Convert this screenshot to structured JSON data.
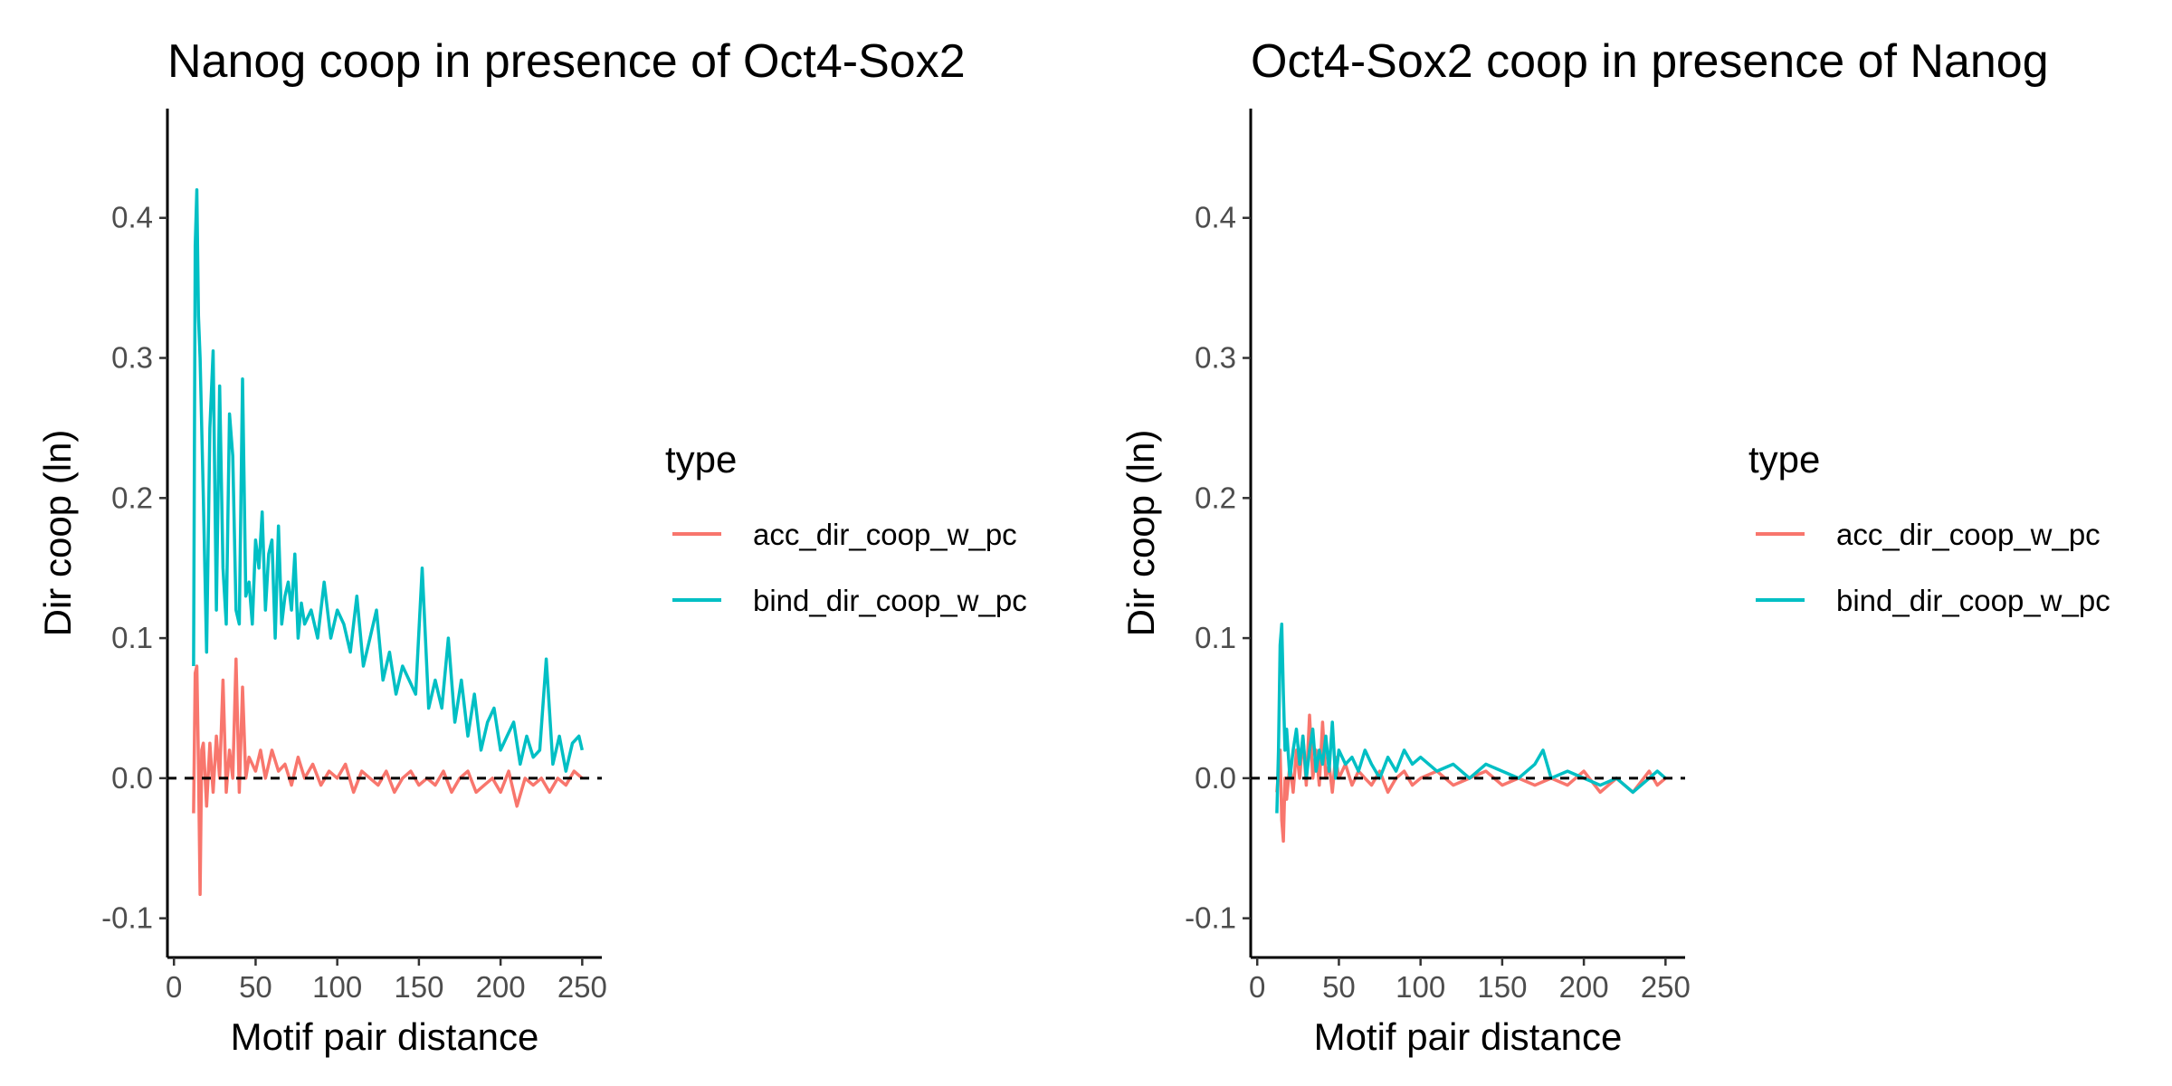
{
  "chart_data": [
    {
      "type": "line",
      "title": "Nanog coop in presence of Oct4-Sox2",
      "xlabel": "Motif pair distance",
      "ylabel": "Dir coop (ln)",
      "xlim": [
        -4,
        262
      ],
      "ylim": [
        -0.128,
        0.478
      ],
      "xticks": [
        0,
        50,
        100,
        150,
        200,
        250
      ],
      "yticks": [
        -0.1,
        0.0,
        0.1,
        0.2,
        0.3,
        0.4
      ],
      "ytick_labels": [
        "-0.1",
        "0.0",
        "0.1",
        "0.2",
        "0.3",
        "0.4"
      ],
      "reference_line": {
        "y": 0,
        "style": "dashed",
        "color": "#000000"
      },
      "grid": false,
      "legend": {
        "title": "type",
        "position": "right"
      },
      "series": [
        {
          "name": "acc_dir_coop_w_pc",
          "color": "#F8766D",
          "x": [
            12,
            13,
            14,
            15,
            16,
            17,
            18,
            20,
            22,
            24,
            26,
            28,
            30,
            32,
            34,
            36,
            38,
            40,
            42,
            44,
            46,
            48,
            50,
            53,
            56,
            60,
            64,
            68,
            72,
            76,
            80,
            85,
            90,
            95,
            100,
            105,
            110,
            115,
            120,
            125,
            130,
            135,
            140,
            145,
            150,
            155,
            160,
            165,
            170,
            175,
            180,
            185,
            190,
            195,
            200,
            205,
            210,
            215,
            220,
            225,
            230,
            235,
            240,
            245,
            250
          ],
          "y": [
            -0.025,
            0.075,
            0.08,
            0.01,
            -0.083,
            0.02,
            0.025,
            -0.02,
            0.025,
            -0.01,
            0.03,
            0.0,
            0.07,
            -0.01,
            0.02,
            0.0,
            0.085,
            -0.01,
            0.065,
            0.0,
            0.015,
            0.01,
            0.005,
            0.02,
            0.0,
            0.02,
            0.005,
            0.01,
            -0.005,
            0.015,
            0.0,
            0.01,
            -0.005,
            0.005,
            0.0,
            0.01,
            -0.01,
            0.005,
            0.0,
            -0.005,
            0.005,
            -0.01,
            0.0,
            0.005,
            -0.005,
            0.0,
            -0.005,
            0.005,
            -0.01,
            0.0,
            0.005,
            -0.01,
            -0.005,
            0.0,
            -0.01,
            0.005,
            -0.02,
            0.0,
            -0.005,
            0.0,
            -0.01,
            0.0,
            -0.005,
            0.005,
            0.0
          ]
        },
        {
          "name": "bind_dir_coop_w_pc",
          "color": "#00BFC4",
          "x": [
            12,
            13,
            14,
            15,
            16,
            17,
            18,
            20,
            22,
            24,
            26,
            28,
            30,
            32,
            34,
            36,
            38,
            40,
            42,
            44,
            46,
            48,
            50,
            52,
            54,
            56,
            58,
            60,
            62,
            64,
            66,
            68,
            70,
            72,
            74,
            76,
            78,
            80,
            84,
            88,
            92,
            96,
            100,
            104,
            108,
            112,
            116,
            120,
            124,
            128,
            132,
            136,
            140,
            144,
            148,
            152,
            156,
            160,
            164,
            168,
            172,
            176,
            180,
            184,
            188,
            192,
            196,
            200,
            204,
            208,
            212,
            216,
            220,
            224,
            228,
            232,
            236,
            240,
            244,
            248,
            250
          ],
          "y": [
            0.08,
            0.38,
            0.42,
            0.33,
            0.3,
            0.25,
            0.2,
            0.09,
            0.25,
            0.305,
            0.12,
            0.28,
            0.15,
            0.11,
            0.26,
            0.23,
            0.12,
            0.11,
            0.285,
            0.13,
            0.14,
            0.11,
            0.17,
            0.15,
            0.19,
            0.12,
            0.16,
            0.17,
            0.1,
            0.18,
            0.11,
            0.13,
            0.14,
            0.12,
            0.16,
            0.1,
            0.125,
            0.11,
            0.12,
            0.1,
            0.14,
            0.1,
            0.12,
            0.11,
            0.09,
            0.13,
            0.08,
            0.1,
            0.12,
            0.07,
            0.09,
            0.06,
            0.08,
            0.07,
            0.06,
            0.15,
            0.05,
            0.07,
            0.05,
            0.1,
            0.04,
            0.07,
            0.03,
            0.06,
            0.02,
            0.04,
            0.05,
            0.02,
            0.03,
            0.04,
            0.01,
            0.03,
            0.015,
            0.02,
            0.085,
            0.01,
            0.03,
            0.005,
            0.025,
            0.03,
            0.02
          ]
        }
      ]
    },
    {
      "type": "line",
      "title": "Oct4-Sox2 coop in presence of Nanog",
      "xlabel": "Motif pair distance",
      "ylabel": "Dir coop (ln)",
      "xlim": [
        -4,
        262
      ],
      "ylim": [
        -0.128,
        0.478
      ],
      "xticks": [
        0,
        50,
        100,
        150,
        200,
        250
      ],
      "yticks": [
        -0.1,
        0.0,
        0.1,
        0.2,
        0.3,
        0.4
      ],
      "ytick_labels": [
        "-0.1",
        "0.0",
        "0.1",
        "0.2",
        "0.3",
        "0.4"
      ],
      "reference_line": {
        "y": 0,
        "style": "dashed",
        "color": "#000000"
      },
      "grid": false,
      "legend": {
        "title": "type",
        "position": "right"
      },
      "series": [
        {
          "name": "acc_dir_coop_w_pc",
          "color": "#F8766D",
          "x": [
            12,
            14,
            15,
            16,
            17,
            18,
            20,
            22,
            24,
            26,
            28,
            30,
            32,
            34,
            36,
            38,
            40,
            42,
            44,
            46,
            48,
            50,
            54,
            58,
            62,
            66,
            70,
            75,
            80,
            85,
            90,
            95,
            100,
            110,
            120,
            130,
            140,
            150,
            160,
            170,
            180,
            190,
            200,
            210,
            220,
            230,
            240,
            245,
            250
          ],
          "y": [
            -0.01,
            0.02,
            -0.03,
            -0.045,
            0.0,
            -0.015,
            0.01,
            -0.01,
            0.02,
            0.0,
            0.03,
            -0.005,
            0.045,
            0.0,
            0.02,
            -0.005,
            0.04,
            0.0,
            0.01,
            -0.01,
            0.015,
            0.0,
            0.01,
            -0.005,
            0.005,
            0.0,
            -0.005,
            0.005,
            -0.01,
            0.0,
            0.005,
            -0.005,
            0.0,
            0.005,
            -0.005,
            0.0,
            0.005,
            -0.005,
            0.0,
            -0.005,
            0.0,
            -0.005,
            0.005,
            -0.01,
            0.0,
            -0.01,
            0.005,
            -0.005,
            0.0
          ]
        },
        {
          "name": "bind_dir_coop_w_pc",
          "color": "#00BFC4",
          "x": [
            12,
            13,
            14,
            15,
            16,
            17,
            18,
            20,
            22,
            24,
            26,
            28,
            30,
            32,
            34,
            36,
            38,
            40,
            42,
            44,
            46,
            48,
            50,
            54,
            58,
            62,
            66,
            70,
            75,
            80,
            85,
            90,
            95,
            100,
            110,
            120,
            130,
            140,
            150,
            160,
            170,
            175,
            180,
            190,
            200,
            210,
            220,
            230,
            240,
            245,
            250
          ],
          "y": [
            -0.025,
            0.02,
            0.095,
            0.11,
            0.06,
            0.02,
            0.035,
            0.0,
            0.02,
            0.035,
            0.01,
            0.03,
            0.0,
            0.02,
            0.035,
            0.005,
            0.02,
            0.01,
            0.03,
            0.005,
            0.04,
            0.0,
            0.02,
            0.01,
            0.015,
            0.005,
            0.02,
            0.01,
            0.0,
            0.015,
            0.005,
            0.02,
            0.01,
            0.015,
            0.005,
            0.01,
            0.0,
            0.01,
            0.005,
            0.0,
            0.01,
            0.02,
            0.0,
            0.005,
            0.0,
            -0.005,
            0.0,
            -0.01,
            0.0,
            0.005,
            0.0
          ]
        }
      ]
    }
  ]
}
